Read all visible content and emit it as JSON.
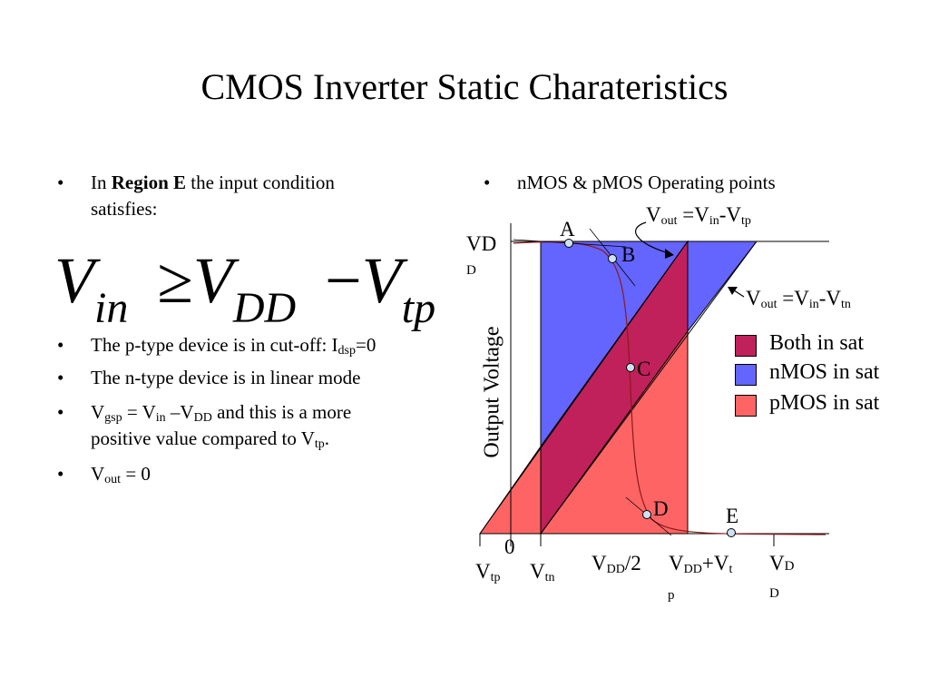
{
  "title": "CMOS Inverter Static Charateristics",
  "left": {
    "bullet1": {
      "pre": "In ",
      "bold": "Region E",
      "post": " the input condition",
      "line2": "satisfies:"
    },
    "formula": {
      "v1": "V",
      "s1": "in",
      "op1": "≥",
      "v2": "V",
      "s2": "DD",
      "op2": "−",
      "v3": "V",
      "s3": "tp"
    },
    "bullet2": {
      "text": "The p-type device is in cut-off: I",
      "sub": "dsp",
      "tail": "=0"
    },
    "bullet3": "The n-type device is in linear mode",
    "bullet4": {
      "a": "V",
      "as": "gsp",
      "b": " = V",
      "bs": "in",
      "c": " –V",
      "cs": "DD",
      "d": " and this is a more",
      "line2a": "positive value compared to V",
      "line2s": "tp",
      "line2b": "."
    },
    "bullet5": {
      "a": "V",
      "as": "out",
      "b": " = 0"
    }
  },
  "right": {
    "bullet": "nMOS & pMOS Operating points",
    "annot_tp": {
      "a": "V",
      "as": "out",
      "b": " =V",
      "bs": "in",
      "c": "-V",
      "cs": "tp"
    },
    "annot_tn": {
      "a": "V",
      "as": "out",
      "b": " =V",
      "bs": "in",
      "c": "-V",
      "cs": "tn"
    },
    "y_axis_label": "Output Voltage",
    "y_top_label": {
      "a": "V",
      "b": "D",
      "c": "D"
    },
    "points": [
      "A",
      "B",
      "C",
      "D",
      "E"
    ],
    "x_labels": {
      "zero": "0",
      "vtp": {
        "a": "V",
        "s": "tp"
      },
      "vtn": {
        "a": "V",
        "s": "tn"
      },
      "half": {
        "a": "V",
        "s": "DD",
        "b": "/2"
      },
      "sum": {
        "a": "V",
        "s1": "DD",
        "b": "+V",
        "s2": "t",
        "c": "p"
      },
      "vdd": {
        "a": "V",
        "b": "D",
        "c": "D"
      }
    },
    "legend": [
      {
        "label": "Both in sat",
        "color": "#c0215a"
      },
      {
        "label": "nMOS in sat",
        "color": "#6464ff"
      },
      {
        "label": "pMOS in sat",
        "color": "#ff6464"
      }
    ]
  }
}
